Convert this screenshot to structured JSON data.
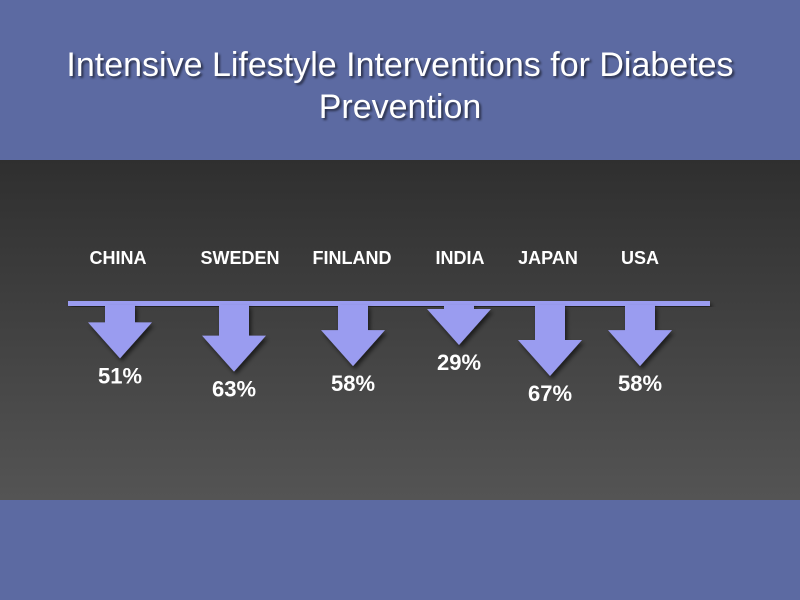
{
  "slide": {
    "title": "Intensive Lifestyle Interventions for Diabetes Prevention"
  },
  "colors": {
    "band": "#5c6aa2",
    "arrow": "#9a9cf0",
    "baseline": "#9a9cf0",
    "text": "#ffffff"
  },
  "chart_data": {
    "type": "bar",
    "title": "Intensive Lifestyle Interventions for Diabetes Prevention",
    "categories": [
      "CHINA",
      "SWEDEN",
      "FINLAND",
      "INDIA",
      "JAPAN",
      "USA"
    ],
    "series": [
      {
        "values": [
          51,
          63,
          58,
          29,
          67,
          58
        ],
        "labels": [
          "51%",
          "63%",
          "58%",
          "29%",
          "67%",
          "58%"
        ]
      }
    ],
    "unit": "%",
    "orientation": "downward-arrows",
    "grid": false,
    "legend": "none"
  }
}
